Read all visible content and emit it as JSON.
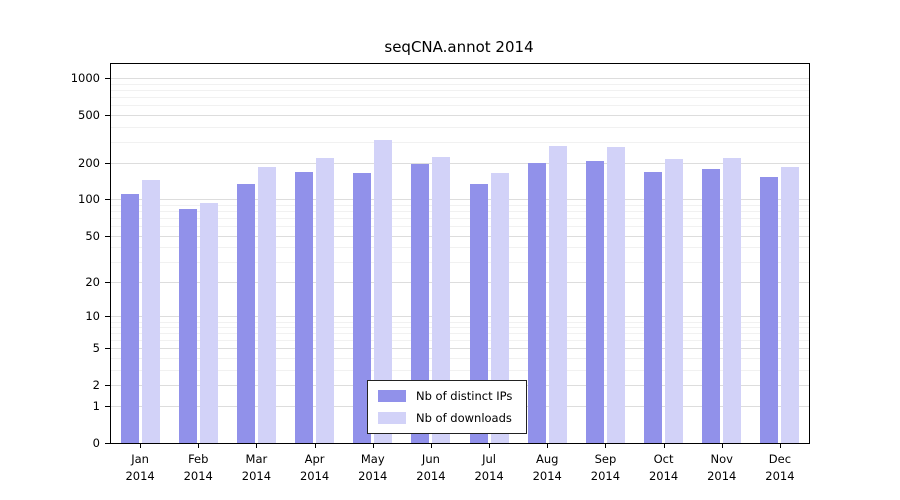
{
  "chart_data": {
    "type": "bar",
    "title": "seqCNA.annot 2014",
    "scale": "log(1+x)",
    "grid": true,
    "ylim": [
      0,
      1315
    ],
    "yticks": [
      0,
      1,
      2,
      5,
      10,
      20,
      50,
      100,
      200,
      500,
      1000
    ],
    "categories": [
      {
        "month": "Jan",
        "year": "2014"
      },
      {
        "month": "Feb",
        "year": "2014"
      },
      {
        "month": "Mar",
        "year": "2014"
      },
      {
        "month": "Apr",
        "year": "2014"
      },
      {
        "month": "May",
        "year": "2014"
      },
      {
        "month": "Jun",
        "year": "2014"
      },
      {
        "month": "Jul",
        "year": "2014"
      },
      {
        "month": "Aug",
        "year": "2014"
      },
      {
        "month": "Sep",
        "year": "2014"
      },
      {
        "month": "Oct",
        "year": "2014"
      },
      {
        "month": "Nov",
        "year": "2014"
      },
      {
        "month": "Dec",
        "year": "2014"
      }
    ],
    "series": [
      {
        "name": "Nb of distinct IPs",
        "color": "#9191ea",
        "values": [
          110,
          83,
          135,
          170,
          165,
          195,
          135,
          200,
          210,
          170,
          180,
          155
        ]
      },
      {
        "name": "Nb of downloads",
        "color": "#d2d2f8",
        "values": [
          145,
          93,
          185,
          220,
          310,
          225,
          165,
          275,
          270,
          215,
          220,
          185
        ]
      }
    ],
    "legend": {
      "position": "inside-bottom-center",
      "border": true
    }
  }
}
